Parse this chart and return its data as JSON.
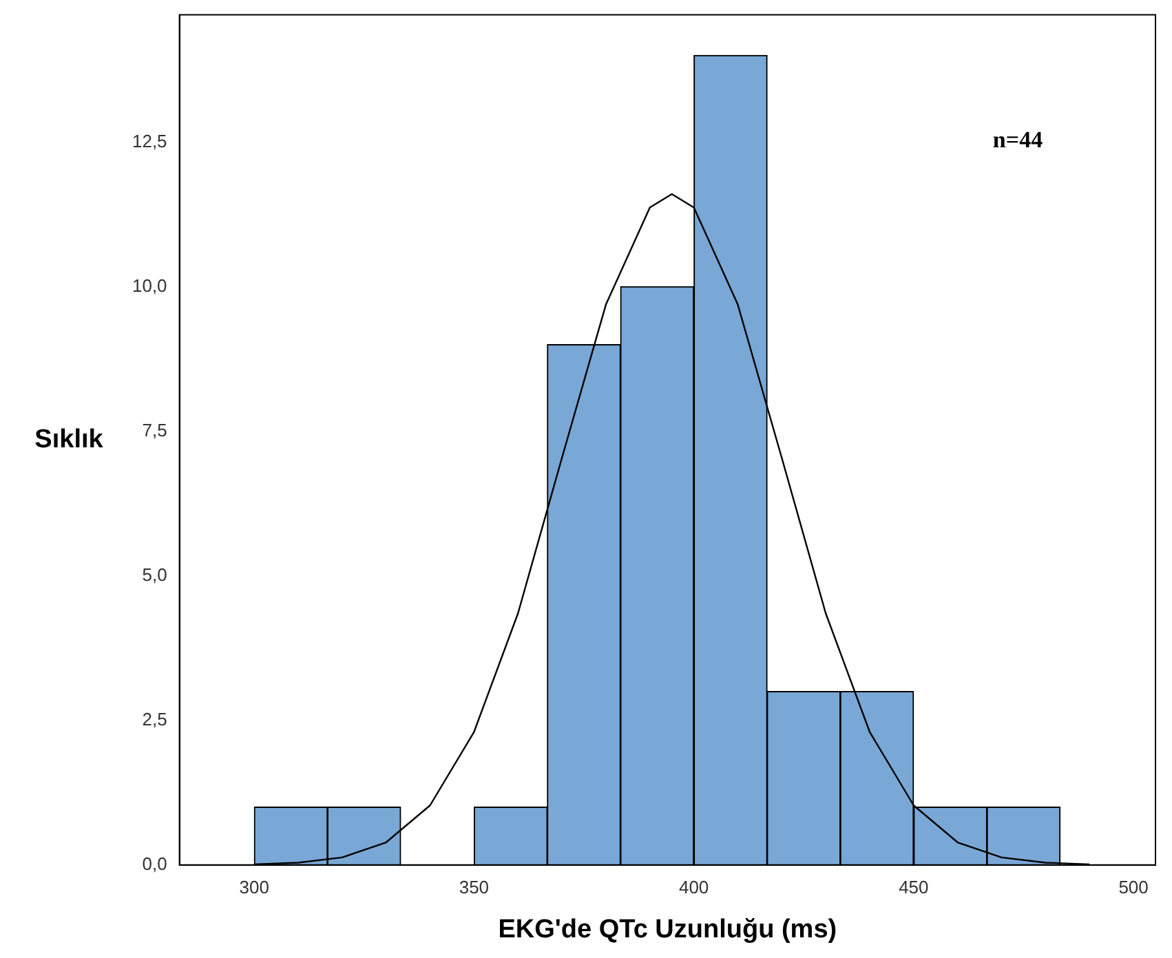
{
  "chart_data": {
    "type": "histogram",
    "xlabel": "EKG'de QTc Uzunluğu (ms)",
    "ylabel": "Sıklık",
    "annotations": [
      "n=44"
    ],
    "bins": [
      300,
      316.7,
      333.3,
      350,
      366.7,
      383.3,
      400,
      416.7,
      433.3,
      450,
      466.7,
      483.3
    ],
    "values": [
      1,
      1,
      0,
      1,
      9,
      10,
      14,
      3,
      3,
      1,
      1
    ],
    "color": "#79a7d6",
    "series": [
      {
        "type": "line",
        "color": "#000000",
        "x": [
          300,
          310,
          320,
          330,
          340,
          350,
          360,
          370,
          380,
          390,
          395,
          400,
          410,
          420,
          430,
          440,
          450,
          460,
          470,
          480,
          490
        ],
        "values": [
          0.01,
          0.04,
          0.13,
          0.39,
          1.03,
          2.3,
          4.35,
          7.04,
          9.69,
          11.37,
          11.6,
          11.37,
          9.69,
          7.04,
          4.35,
          2.3,
          1.03,
          0.39,
          0.13,
          0.04,
          0.01
        ]
      }
    ],
    "xlim": [
      283,
      505
    ],
    "xticks": [
      300,
      350,
      400,
      450,
      500
    ],
    "ylim": [
      0,
      14.7
    ],
    "yticks": [
      {
        "value": 0,
        "label": "0,0"
      },
      {
        "value": 2.5,
        "label": "2,5"
      },
      {
        "value": 5,
        "label": "5,0"
      },
      {
        "value": 7.5,
        "label": "7,5"
      },
      {
        "value": 10,
        "label": "10,0"
      },
      {
        "value": 12.5,
        "label": "12,5"
      }
    ],
    "grid": false,
    "legend": false,
    "marker": "none",
    "line_style": "solid"
  }
}
